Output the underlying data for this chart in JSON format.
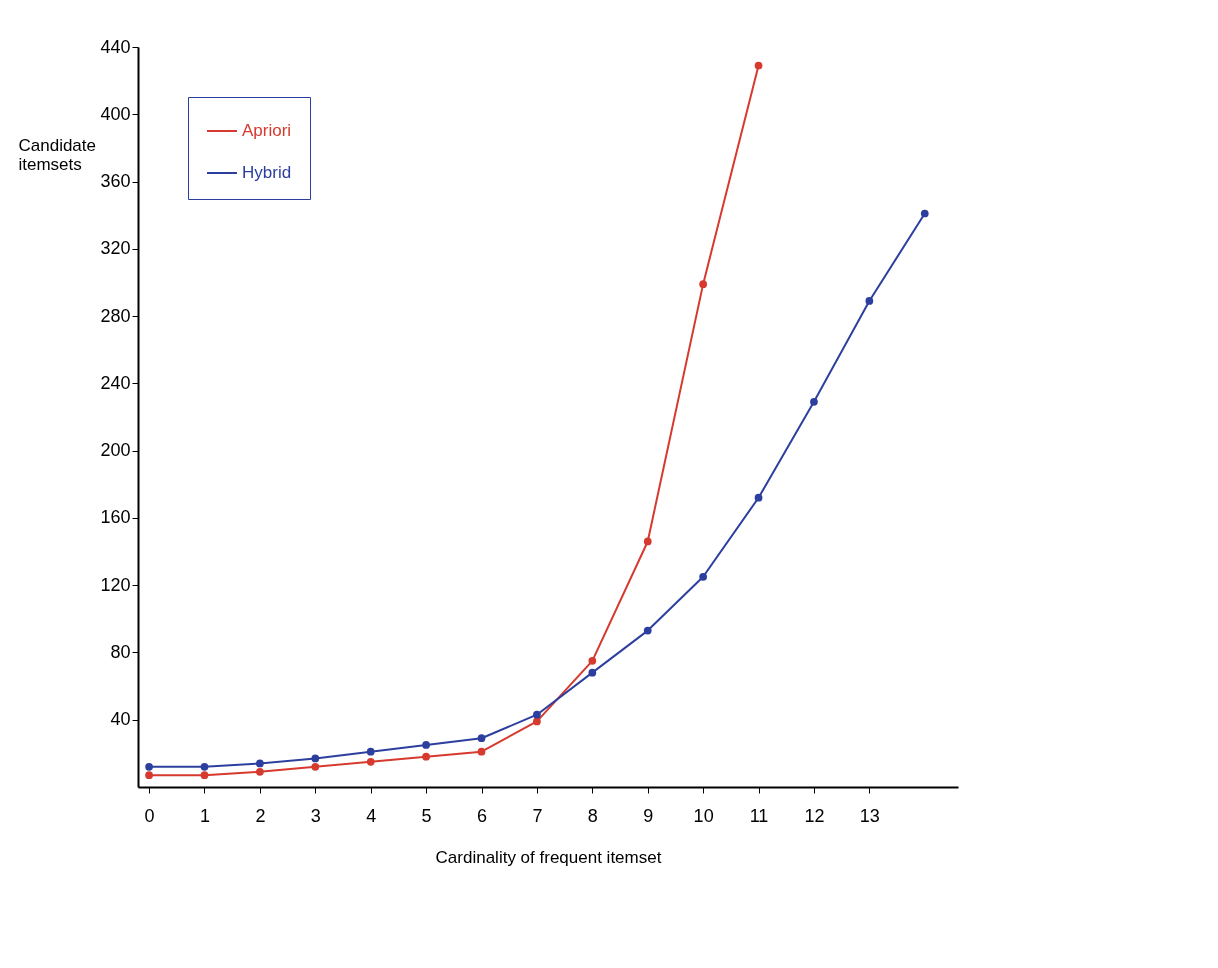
{
  "chart_data": {
    "type": "line",
    "xlabel": "Cardinality of frequent itemset",
    "ylabel": "Candidate itemsets",
    "xlim": [
      -0.2,
      14.6
    ],
    "xticks": [
      0,
      1,
      2,
      3,
      4,
      5,
      6,
      7,
      8,
      9,
      10,
      11,
      12,
      13
    ],
    "ylim": [
      0,
      440
    ],
    "yticks": [
      40,
      80,
      120,
      160,
      200,
      240,
      280,
      320,
      360,
      400,
      440
    ],
    "grid": false,
    "legend": "top left",
    "marker": "circle",
    "line_style": "solid",
    "series": [
      {
        "name": "Apriori",
        "color": "#d63a2e",
        "x": [
          0,
          1,
          2,
          3,
          4,
          5,
          6,
          7,
          8,
          9,
          10,
          11
        ],
        "values": [
          7,
          7,
          9,
          12,
          15,
          18,
          21,
          39,
          75,
          146,
          299,
          429
        ]
      },
      {
        "name": "Hybrid",
        "color": "#2d3f9e",
        "x": [
          0,
          1,
          2,
          3,
          4,
          5,
          6,
          7,
          8,
          9,
          10,
          11,
          12,
          13,
          14
        ],
        "values": [
          12,
          12,
          14,
          17,
          21,
          25,
          29,
          43,
          68,
          93,
          125,
          172,
          229,
          289,
          341
        ]
      }
    ]
  }
}
